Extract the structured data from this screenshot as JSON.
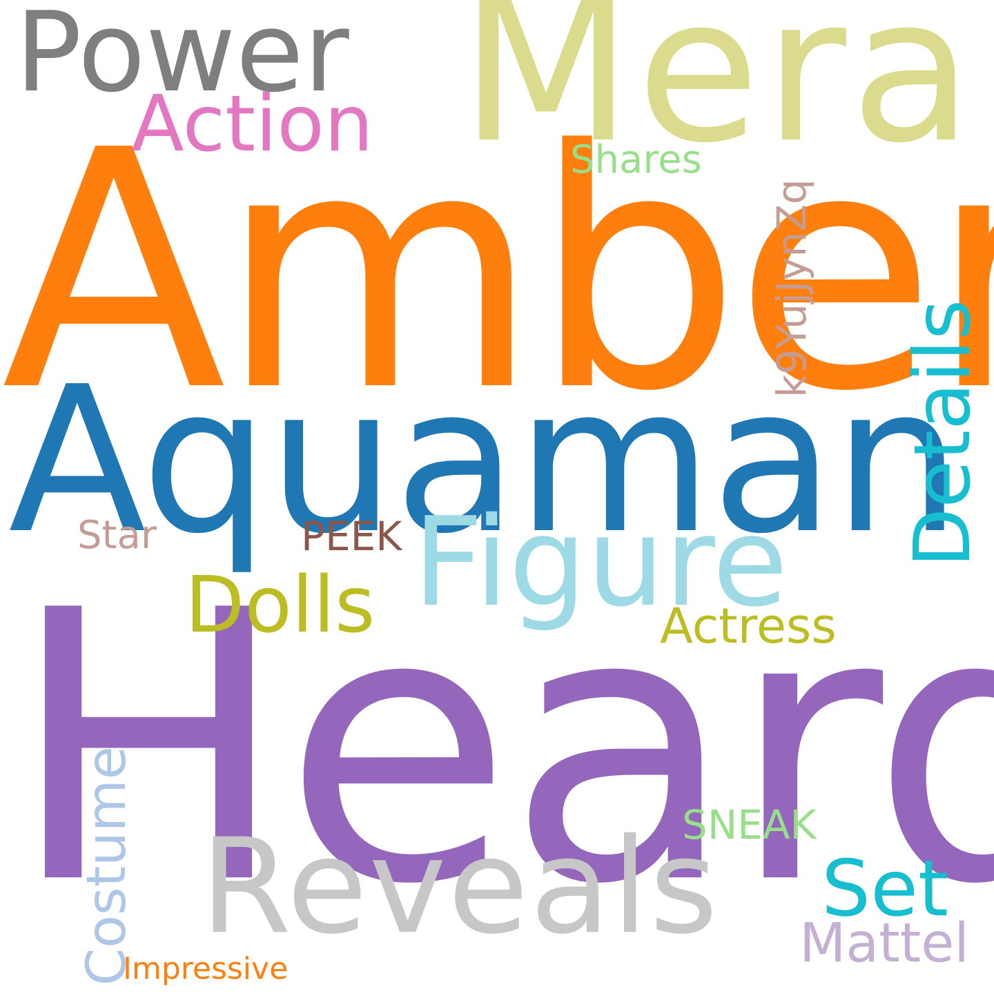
{
  "words": {
    "amber": {
      "text": "Amber",
      "color": "#ff7f0e"
    },
    "heard": {
      "text": "Heard",
      "color": "#9467bd"
    },
    "aquaman": {
      "text": "Aquaman",
      "color": "#1f77b4"
    },
    "mera": {
      "text": "Mera",
      "color": "#dbdb8d"
    },
    "power": {
      "text": "Power",
      "color": "#7f7f7f"
    },
    "reveals": {
      "text": "Reveals",
      "color": "#c7c7c7"
    },
    "figure": {
      "text": "Figure",
      "color": "#9edae5"
    },
    "action": {
      "text": "Action",
      "color": "#e377c2"
    },
    "dolls": {
      "text": "Dolls",
      "color": "#bcbd22"
    },
    "set": {
      "text": "Set",
      "color": "#17becf"
    },
    "details": {
      "text": "Details",
      "color": "#17becf"
    },
    "actress": {
      "text": "Actress",
      "color": "#bcbd22"
    },
    "mattel": {
      "text": "Mattel",
      "color": "#c5b0d5"
    },
    "costume": {
      "text": "Costume",
      "color": "#aec7e8"
    },
    "shares": {
      "text": "Shares",
      "color": "#98df8a"
    },
    "k9": {
      "text": "k9YujJynZq",
      "color": "#c49c94"
    },
    "star": {
      "text": "Star",
      "color": "#c49c94"
    },
    "peek": {
      "text": "PEEK",
      "color": "#8c564b"
    },
    "sneak": {
      "text": "SNEAK",
      "color": "#98df8a"
    },
    "impressive": {
      "text": "Impressive",
      "color": "#ff7f0e"
    }
  }
}
